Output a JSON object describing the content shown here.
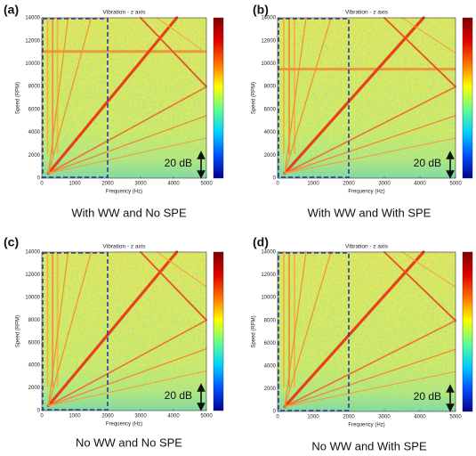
{
  "chart_data": [
    {
      "type": "heatmap",
      "panel_label": "(a)",
      "title": "Vibration - z axis",
      "xlabel": "Frequency (Hz)",
      "ylabel": "Speed (RPM)",
      "xlim": [
        0,
        5000
      ],
      "ylim": [
        0,
        14000
      ],
      "xticks": [
        0,
        1000,
        2000,
        3000,
        4000,
        5000
      ],
      "yticks": [
        0,
        2000,
        4000,
        6000,
        8000,
        10000,
        12000,
        14000
      ],
      "highlight_x": [
        0,
        2000
      ],
      "highlight_y": [
        0,
        14000
      ],
      "annotation": "20 dB",
      "caption": "With WW and No SPE",
      "colormap": [
        "#00008f",
        "#0050ff",
        "#00d0ff",
        "#60ff90",
        "#ffff00",
        "#ff7000",
        "#e00000",
        "#800000"
      ]
    },
    {
      "type": "heatmap",
      "panel_label": "(b)",
      "title": "Vibration - z axis",
      "xlabel": "Frequency (Hz)",
      "ylabel": "Speed (RPM)",
      "xlim": [
        0,
        5000
      ],
      "ylim": [
        0,
        14000
      ],
      "xticks": [
        0,
        1000,
        2000,
        3000,
        4000,
        5000
      ],
      "yticks": [
        0,
        2000,
        4000,
        6000,
        8000,
        10000,
        12000,
        14000
      ],
      "highlight_x": [
        0,
        2000
      ],
      "highlight_y": [
        0,
        14000
      ],
      "annotation": "20 dB",
      "caption": "With WW and With SPE",
      "colormap": [
        "#00008f",
        "#0050ff",
        "#00d0ff",
        "#60ff90",
        "#ffff00",
        "#ff7000",
        "#e00000",
        "#800000"
      ]
    },
    {
      "type": "heatmap",
      "panel_label": "(c)",
      "title": "Vibration - z axis",
      "xlabel": "Frequency (Hz)",
      "ylabel": "Speed (RPM)",
      "xlim": [
        0,
        5000
      ],
      "ylim": [
        0,
        14000
      ],
      "xticks": [
        0,
        1000,
        2000,
        3000,
        4000,
        5000
      ],
      "yticks": [
        0,
        2000,
        4000,
        6000,
        8000,
        10000,
        12000,
        14000
      ],
      "highlight_x": [
        0,
        2000
      ],
      "highlight_y": [
        0,
        14000
      ],
      "annotation": "20 dB",
      "caption": "No WW and No SPE",
      "colormap": [
        "#00008f",
        "#0050ff",
        "#00d0ff",
        "#60ff90",
        "#ffff00",
        "#ff7000",
        "#e00000",
        "#800000"
      ]
    },
    {
      "type": "heatmap",
      "panel_label": "(d)",
      "title": "Vibration - z axis",
      "xlabel": "Frequency (Hz)",
      "ylabel": "Speed (RPM)",
      "xlim": [
        0,
        5000
      ],
      "ylim": [
        0,
        14000
      ],
      "xticks": [
        0,
        1000,
        2000,
        3000,
        4000,
        5000
      ],
      "yticks": [
        0,
        2000,
        4000,
        6000,
        8000,
        10000,
        12000,
        14000
      ],
      "highlight_x": [
        0,
        2000
      ],
      "highlight_y": [
        0,
        14000
      ],
      "annotation": "20 dB",
      "caption": "No WW and With SPE",
      "colormap": [
        "#00008f",
        "#0050ff",
        "#00d0ff",
        "#60ff90",
        "#ffff00",
        "#ff7000",
        "#e00000",
        "#800000"
      ]
    }
  ]
}
